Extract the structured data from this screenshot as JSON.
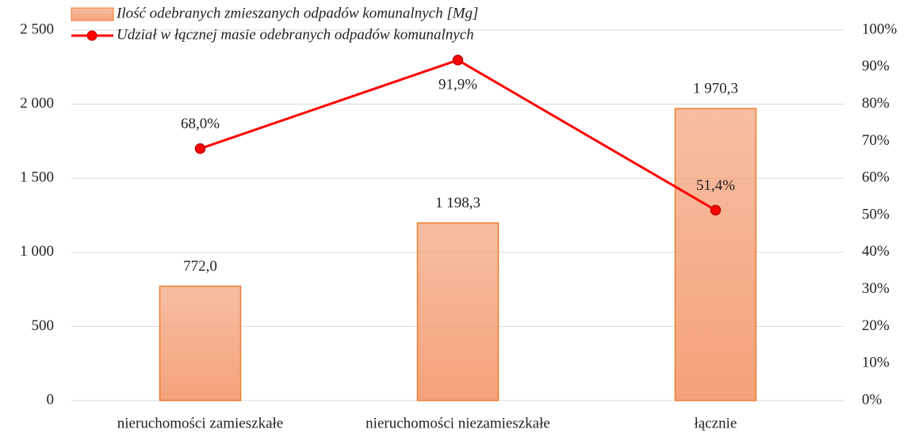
{
  "chart_data": {
    "type": "bar",
    "categories": [
      "nieruchomości zamieszkałe",
      "nieruchomości niezamieszkałe",
      "łącznie"
    ],
    "series": [
      {
        "name": "Ilość odebranych zmieszanych odpadów komunalnych [Mg]",
        "type": "bar",
        "color": "#f4a27a",
        "values": [
          772.0,
          1198.3,
          1970.3
        ],
        "value_labels": [
          "772,0",
          "1 198,3",
          "1 970,3"
        ]
      },
      {
        "name": "Udział w łącznej masie odebranych odpadów komunalnych",
        "type": "line",
        "axis": "y2",
        "color": "#ff0000",
        "values": [
          68.0,
          91.9,
          51.4
        ],
        "value_labels": [
          "68,0%",
          "91,9%",
          "51,4%"
        ]
      }
    ],
    "ylim": [
      0,
      2500
    ],
    "yticks": [
      0,
      500,
      {
        "value": 1000,
        "label": "1 000"
      },
      {
        "value": 1500,
        "label": "1 500"
      },
      {
        "value": 2000,
        "label": "2 000"
      },
      {
        "value": 2500,
        "label": "2 500"
      }
    ],
    "y2lim": [
      0,
      100
    ],
    "y2ticks": [
      {
        "value": 0,
        "label": "0%"
      },
      {
        "value": 10,
        "label": "10%"
      },
      {
        "value": 20,
        "label": "20%"
      },
      {
        "value": 30,
        "label": "30%"
      },
      {
        "value": 40,
        "label": "40%"
      },
      {
        "value": 50,
        "label": "50%"
      },
      {
        "value": 60,
        "label": "60%"
      },
      {
        "value": 70,
        "label": "70%"
      },
      {
        "value": 80,
        "label": "80%"
      },
      {
        "value": 90,
        "label": "90%"
      },
      {
        "value": 100,
        "label": "100%"
      }
    ],
    "grid": true,
    "legend": "top-left"
  }
}
